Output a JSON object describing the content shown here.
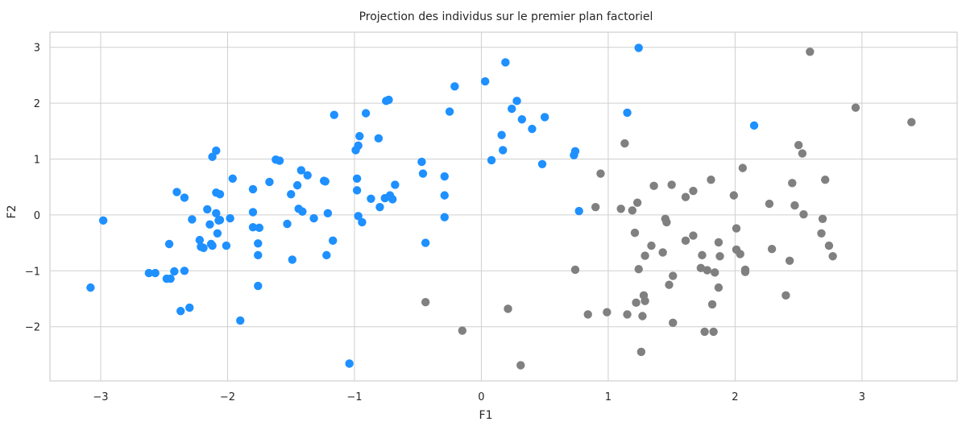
{
  "chart_data": {
    "type": "scatter",
    "title": "Projection des individus sur le premier plan factoriel",
    "xlabel": "F1",
    "ylabel": "F2",
    "xlim": [
      -3.4,
      3.75
    ],
    "ylim": [
      -2.97,
      3.27
    ],
    "xticks": [
      -3,
      -2,
      -1,
      0,
      1,
      2,
      3
    ],
    "yticks": [
      -2,
      -1,
      0,
      1,
      2,
      3
    ],
    "xtick_labels": [
      "−3",
      "−2",
      "−1",
      "0",
      "1",
      "2",
      "3"
    ],
    "ytick_labels": [
      "−2",
      "−1",
      "0",
      "1",
      "2",
      "3"
    ],
    "grid": true,
    "legend": "none",
    "series": [
      {
        "color": "#1e90ff",
        "points": [
          [
            -3.08,
            -1.3
          ],
          [
            -2.98,
            -0.1
          ],
          [
            -2.62,
            -1.04
          ],
          [
            -2.57,
            -1.04
          ],
          [
            -2.48,
            -1.14
          ],
          [
            -2.45,
            -1.14
          ],
          [
            -2.46,
            -0.52
          ],
          [
            -2.42,
            -1.01
          ],
          [
            -2.4,
            0.41
          ],
          [
            -2.37,
            -1.72
          ],
          [
            -2.34,
            -1.0
          ],
          [
            -2.34,
            0.31
          ],
          [
            -2.3,
            -1.66
          ],
          [
            -2.28,
            -0.08
          ],
          [
            -2.22,
            -0.45
          ],
          [
            -2.21,
            -0.57
          ],
          [
            -2.19,
            -0.59
          ],
          [
            -2.16,
            0.1
          ],
          [
            -2.14,
            -0.17
          ],
          [
            -2.13,
            -0.52
          ],
          [
            -2.12,
            -0.55
          ],
          [
            -2.12,
            1.04
          ],
          [
            -2.09,
            1.15
          ],
          [
            -2.09,
            0.4
          ],
          [
            -2.09,
            0.03
          ],
          [
            -2.08,
            -0.33
          ],
          [
            -2.07,
            -0.1
          ],
          [
            -2.06,
            0.37
          ],
          [
            -2.06,
            -0.09
          ],
          [
            -2.01,
            -0.55
          ],
          [
            -1.98,
            -0.06
          ],
          [
            -1.96,
            0.65
          ],
          [
            -1.9,
            -1.89
          ],
          [
            -1.8,
            0.46
          ],
          [
            -1.8,
            -0.22
          ],
          [
            -1.8,
            0.05
          ],
          [
            -1.76,
            -0.51
          ],
          [
            -1.76,
            -0.72
          ],
          [
            -1.76,
            -1.27
          ],
          [
            -1.75,
            -0.23
          ],
          [
            -1.67,
            0.59
          ],
          [
            -1.62,
            0.99
          ],
          [
            -1.59,
            0.97
          ],
          [
            -1.53,
            -0.16
          ],
          [
            -1.5,
            0.37
          ],
          [
            -1.49,
            -0.8
          ],
          [
            -1.45,
            0.53
          ],
          [
            -1.44,
            0.11
          ],
          [
            -1.42,
            0.8
          ],
          [
            -1.41,
            0.06
          ],
          [
            -1.37,
            0.71
          ],
          [
            -1.32,
            -0.06
          ],
          [
            -1.24,
            0.61
          ],
          [
            -1.23,
            0.6
          ],
          [
            -1.21,
            0.03
          ],
          [
            -1.22,
            -0.72
          ],
          [
            -1.17,
            -0.46
          ],
          [
            -1.16,
            1.79
          ],
          [
            -1.04,
            -2.66
          ],
          [
            -0.99,
            1.16
          ],
          [
            -0.98,
            0.65
          ],
          [
            -0.98,
            0.44
          ],
          [
            -0.97,
            1.24
          ],
          [
            -0.96,
            1.41
          ],
          [
            -0.97,
            -0.02
          ],
          [
            -0.94,
            -0.13
          ],
          [
            -0.91,
            1.82
          ],
          [
            -0.87,
            0.29
          ],
          [
            -0.81,
            1.37
          ],
          [
            -0.8,
            0.14
          ],
          [
            -0.76,
            0.3
          ],
          [
            -0.75,
            2.04
          ],
          [
            -0.73,
            2.06
          ],
          [
            -0.72,
            0.35
          ],
          [
            -0.7,
            0.28
          ],
          [
            -0.68,
            0.54
          ],
          [
            -0.47,
            0.95
          ],
          [
            -0.46,
            0.74
          ],
          [
            -0.44,
            -0.5
          ],
          [
            -0.29,
            -0.04
          ],
          [
            -0.29,
            0.35
          ],
          [
            -0.29,
            0.69
          ],
          [
            -0.25,
            1.85
          ],
          [
            -0.21,
            2.3
          ],
          [
            0.03,
            2.39
          ],
          [
            0.08,
            0.98
          ],
          [
            0.16,
            1.43
          ],
          [
            0.17,
            1.16
          ],
          [
            0.19,
            2.73
          ],
          [
            0.24,
            1.9
          ],
          [
            0.28,
            2.04
          ],
          [
            0.32,
            1.71
          ],
          [
            0.4,
            1.54
          ],
          [
            0.48,
            0.91
          ],
          [
            0.5,
            1.75
          ],
          [
            0.73,
            1.07
          ],
          [
            0.74,
            1.14
          ],
          [
            0.77,
            0.07
          ],
          [
            1.15,
            1.83
          ],
          [
            1.24,
            2.99
          ],
          [
            2.15,
            1.6
          ]
        ]
      },
      {
        "color": "#808080",
        "points": [
          [
            -0.44,
            -1.56
          ],
          [
            -0.15,
            -2.07
          ],
          [
            0.21,
            -1.68
          ],
          [
            0.31,
            -2.69
          ],
          [
            0.74,
            -0.98
          ],
          [
            0.84,
            -1.78
          ],
          [
            0.9,
            0.14
          ],
          [
            0.94,
            0.74
          ],
          [
            0.99,
            -1.74
          ],
          [
            1.1,
            0.11
          ],
          [
            1.13,
            1.28
          ],
          [
            1.15,
            -1.78
          ],
          [
            1.19,
            0.08
          ],
          [
            1.21,
            -0.32
          ],
          [
            1.22,
            -1.57
          ],
          [
            1.23,
            0.22
          ],
          [
            1.24,
            -0.97
          ],
          [
            1.26,
            -2.45
          ],
          [
            1.27,
            -1.81
          ],
          [
            1.28,
            -1.44
          ],
          [
            1.29,
            -1.54
          ],
          [
            1.29,
            -0.73
          ],
          [
            1.34,
            -0.55
          ],
          [
            1.36,
            0.52
          ],
          [
            1.43,
            -0.67
          ],
          [
            1.45,
            -0.07
          ],
          [
            1.46,
            -0.13
          ],
          [
            1.48,
            -1.25
          ],
          [
            1.5,
            0.54
          ],
          [
            1.51,
            -1.09
          ],
          [
            1.51,
            -1.93
          ],
          [
            1.61,
            0.32
          ],
          [
            1.61,
            -0.46
          ],
          [
            1.67,
            -0.37
          ],
          [
            1.67,
            0.43
          ],
          [
            1.73,
            -0.95
          ],
          [
            1.74,
            -0.72
          ],
          [
            1.76,
            -2.09
          ],
          [
            1.78,
            -0.99
          ],
          [
            1.81,
            0.63
          ],
          [
            1.82,
            -1.6
          ],
          [
            1.83,
            -2.09
          ],
          [
            1.84,
            -1.03
          ],
          [
            1.87,
            -0.49
          ],
          [
            1.87,
            -1.3
          ],
          [
            1.88,
            -0.74
          ],
          [
            1.99,
            0.35
          ],
          [
            2.01,
            -0.24
          ],
          [
            2.01,
            -0.62
          ],
          [
            2.04,
            -0.7
          ],
          [
            2.06,
            0.84
          ],
          [
            2.08,
            -0.98
          ],
          [
            2.08,
            -1.02
          ],
          [
            2.27,
            0.2
          ],
          [
            2.29,
            -0.61
          ],
          [
            2.4,
            -1.44
          ],
          [
            2.43,
            -0.82
          ],
          [
            2.45,
            0.57
          ],
          [
            2.47,
            0.17
          ],
          [
            2.5,
            1.25
          ],
          [
            2.53,
            1.1
          ],
          [
            2.54,
            0.01
          ],
          [
            2.59,
            2.92
          ],
          [
            2.68,
            -0.33
          ],
          [
            2.69,
            -0.07
          ],
          [
            2.71,
            0.63
          ],
          [
            2.74,
            -0.55
          ],
          [
            2.77,
            -0.74
          ],
          [
            2.95,
            1.92
          ],
          [
            3.39,
            1.66
          ]
        ]
      }
    ]
  }
}
